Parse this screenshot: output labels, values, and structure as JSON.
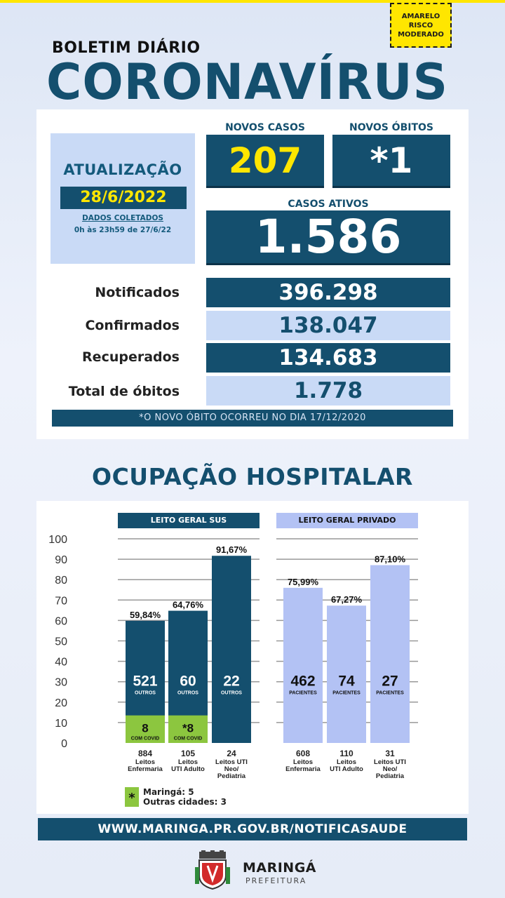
{
  "badge": {
    "line1": "AMARELO",
    "line2": "RISCO",
    "line3": "MODERADO"
  },
  "header": {
    "subtitle": "BOLETIM DIÁRIO",
    "title": "CORONAVÍRUS"
  },
  "update": {
    "label": "ATUALIZAÇÃO",
    "date": "28/6/2022",
    "collected_label": "DADOS COLETADOS",
    "collected_range": "0h às 23h59 de 27/6/22"
  },
  "new_cases": {
    "label": "NOVOS CASOS",
    "value": "207"
  },
  "new_deaths": {
    "label": "NOVOS ÓBITOS",
    "value": "*1"
  },
  "active_cases": {
    "label": "CASOS ATIVOS",
    "value": "1.586"
  },
  "stats": [
    {
      "label": "Notificados",
      "value": "396.298"
    },
    {
      "label": "Confirmados",
      "value": "138.047"
    },
    {
      "label": "Recuperados",
      "value": "134.683"
    },
    {
      "label": "Total de óbitos",
      "value": "1.778"
    }
  ],
  "note": "*O NOVO  ÓBITO OCORREU NO DIA 17/12/2020",
  "hospital_title": "OCUPAÇÃO HOSPITALAR",
  "colors": {
    "dark_blue": "#144f6e",
    "light_blue": "#c9daf6",
    "bar_sus": "#144f6e",
    "bar_private": "#b3c2f4",
    "covid_green": "#8cc63f",
    "yellow": "#ffe600"
  },
  "chart_data": {
    "type": "bar",
    "ylim": [
      0,
      100
    ],
    "yticks": [
      "100",
      "90",
      "80",
      "70",
      "60",
      "50",
      "40",
      "30",
      "20",
      "10",
      "0"
    ],
    "groups": [
      {
        "header": "LEITO GERAL SUS",
        "bars": [
          {
            "percent": 59.84,
            "percent_label": "59,84%",
            "others_value": "521",
            "others_label": "OUTROS",
            "covid_value": "8",
            "covid_label": "COM COVID",
            "covid_percent": 13.5,
            "total": "884",
            "category": [
              "Leitos",
              "Enfermaria"
            ]
          },
          {
            "percent": 64.76,
            "percent_label": "64,76%",
            "others_value": "60",
            "others_label": "OUTROS",
            "covid_value": "*8",
            "covid_label": "COM COVID",
            "covid_percent": 13.5,
            "total": "105",
            "category": [
              "Leitos",
              "UTI Adulto"
            ]
          },
          {
            "percent": 91.67,
            "percent_label": "91,67%",
            "others_value": "22",
            "others_label": "OUTROS",
            "total": "24",
            "category": [
              "Leitos UTI",
              "Neo/",
              "Pediatria"
            ]
          }
        ]
      },
      {
        "header": "LEITO GERAL PRIVADO",
        "bars": [
          {
            "percent": 75.99,
            "percent_label": "75,99%",
            "others_value": "462",
            "others_label": "PACIENTES",
            "total": "608",
            "category": [
              "Leitos",
              "Enfermaria"
            ]
          },
          {
            "percent": 67.27,
            "percent_label": "67,27%",
            "others_value": "74",
            "others_label": "PACIENTES",
            "total": "110",
            "category": [
              "Leitos",
              "UTI Adulto"
            ]
          },
          {
            "percent": 87.1,
            "percent_label": "87,10%",
            "others_value": "27",
            "others_label": "PACIENTES",
            "total": "31",
            "category": [
              "Leitos UTI",
              "Neo/",
              "Pediatria"
            ]
          }
        ]
      }
    ],
    "legend": {
      "marker": "*",
      "line1": "Maringá: 5",
      "line2": "Outras cidades: 3"
    }
  },
  "footer": {
    "url": "WWW.MARINGA.PR.GOV.BR/NOTIFICASAUDE",
    "brand": "MARINGÁ",
    "brand_sub": "PREFEITURA",
    "logo_icon": "city-coat-of-arms-icon"
  }
}
